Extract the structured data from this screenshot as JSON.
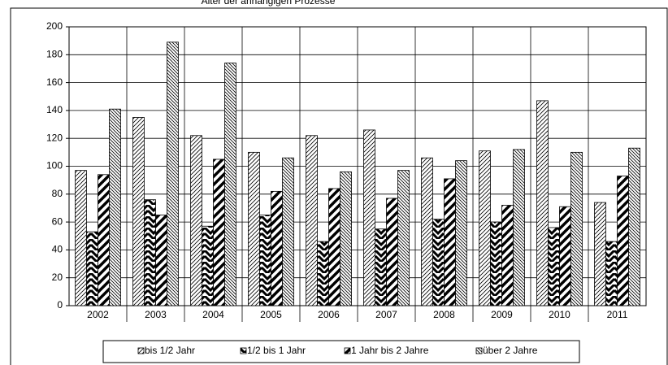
{
  "chart_data": {
    "type": "bar",
    "title": "Alter der anhängigen Prozesse",
    "categories": [
      "2002",
      "2003",
      "2004",
      "2005",
      "2006",
      "2007",
      "2008",
      "2009",
      "2010",
      "2011"
    ],
    "series": [
      {
        "name": "bis 1/2 Jahr",
        "color": "#000000",
        "pattern": "light-diagonal",
        "values": [
          97,
          135,
          122,
          110,
          122,
          126,
          106,
          111,
          147,
          74
        ]
      },
      {
        "name": "1/2 bis 1 Jahr",
        "color": "#000000",
        "pattern": "chevron",
        "values": [
          53,
          76,
          57,
          65,
          46,
          55,
          62,
          60,
          56,
          46
        ]
      },
      {
        "name": "1 Jahr bis 2 Jahre",
        "color": "#000000",
        "pattern": "bold-diagonal",
        "values": [
          94,
          65,
          105,
          82,
          84,
          77,
          91,
          72,
          71,
          93
        ]
      },
      {
        "name": "über 2 Jahre",
        "color": "#000000",
        "pattern": "dense-back-diagonal",
        "values": [
          141,
          189,
          174,
          106,
          96,
          97,
          104,
          112,
          110,
          113
        ]
      }
    ],
    "ylim": [
      0,
      200
    ],
    "yticks": [
      0,
      20,
      40,
      60,
      80,
      100,
      120,
      140,
      160,
      180,
      200
    ],
    "grid": true,
    "legend": "bottom"
  }
}
